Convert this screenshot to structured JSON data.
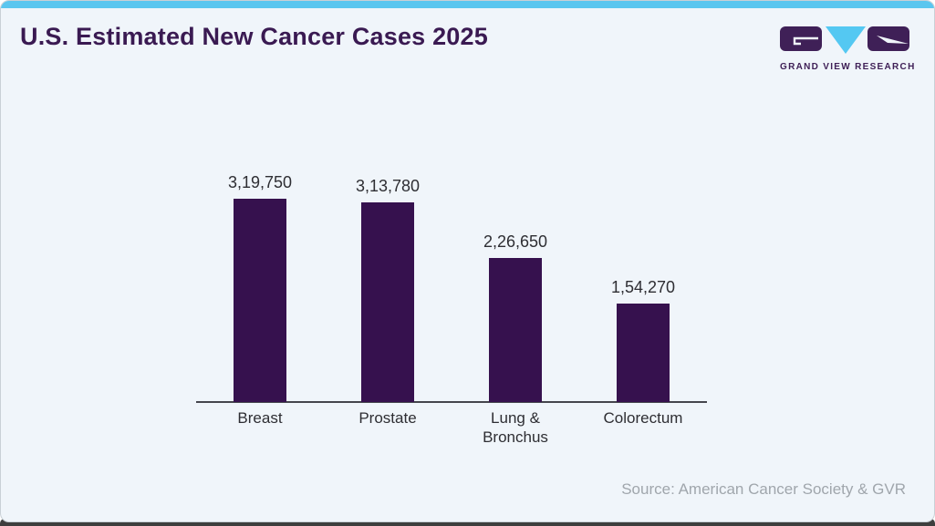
{
  "header": {
    "title": "U.S. Estimated New Cancer Cases 2025",
    "logo_text": "GRAND VIEW RESEARCH"
  },
  "chart_data": {
    "type": "bar",
    "title": "U.S. Estimated New Cancer Cases 2025",
    "categories": [
      "Breast",
      "Prostate",
      "Lung &\nBronchus",
      "Colorectum"
    ],
    "values": [
      319750,
      313780,
      226650,
      154270
    ],
    "value_labels": [
      "3,19,750",
      "3,13,780",
      "2,26,650",
      "1,54,270"
    ],
    "xlabel": "",
    "ylabel": "",
    "ylim": [
      0,
      340000
    ],
    "grid": false,
    "legend": false,
    "bar_color": "#36114e",
    "axis_color": "#45454d",
    "label_color": "#2e2e33"
  },
  "footer": {
    "source": "Source: American Cancer Society & GVR"
  },
  "theme": {
    "accent_blue": "#5bc6ef",
    "logo_blue": "#54c8f2",
    "title_purple": "#3a1a52",
    "logo_purple": "#3f2057",
    "card_bg": "#f0f5fa"
  }
}
